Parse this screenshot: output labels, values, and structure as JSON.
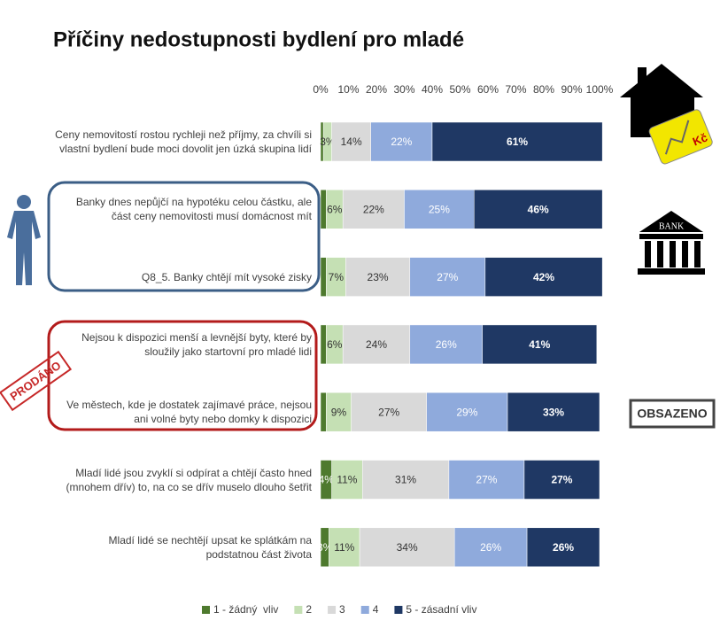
{
  "chart_data": {
    "type": "bar",
    "orientation": "horizontal",
    "stacked": true,
    "title": "Příčiny nedostupnosti bydlení pro mladé",
    "categories": [
      "Ceny nemovitostí rostou rychleji než příjmy, za chvíli si vlastní bydlení bude moci dovolit jen úzká skupina lidí",
      "Banky dnes nepůjčí na hypotéku celou částku, ale část ceny nemovitosti musí domácnost mít",
      "Q8_5. Banky chtějí mít vysoké zisky",
      "Nejsou k dispozici menší a levnější byty, které by sloužily jako startovní pro mladé lidi",
      "Ve městech, kde je dostatek zajímavé práce, nejsou ani volné byty nebo domky k dispozici",
      "Mladí lidé jsou zvyklí si odpírat a chtějí často hned (mnohem dřív) to, na co se dřív muselo dlouho šetřit",
      "Mladí lidé se nechtějí upsat ke splátkám na podstatnou část života"
    ],
    "series": [
      {
        "name": "1 - žádný  vliv",
        "color": "#4e7a2e",
        "values": [
          1,
          2,
          2,
          2,
          2,
          4,
          3
        ],
        "value_labels": [
          null,
          null,
          null,
          null,
          null,
          "4%",
          "3%"
        ]
      },
      {
        "name": "2",
        "color": "#c5e0b4",
        "values": [
          3,
          6,
          7,
          6,
          9,
          11,
          11
        ],
        "value_labels": [
          "3%",
          "6%",
          "7%",
          "6%",
          "9%",
          "11%",
          "11%"
        ]
      },
      {
        "name": "3",
        "color": "#d9d9d9",
        "values": [
          14,
          22,
          23,
          24,
          27,
          31,
          34
        ],
        "value_labels": [
          "14%",
          "22%",
          "23%",
          "24%",
          "27%",
          "31%",
          "34%"
        ]
      },
      {
        "name": "4",
        "color": "#8faadc",
        "values": [
          22,
          25,
          27,
          26,
          29,
          27,
          26
        ],
        "value_labels": [
          "22%",
          "25%",
          "27%",
          "26%",
          "29%",
          "27%",
          "26%"
        ]
      },
      {
        "name": "5 - zásadní vliv",
        "color": "#1f3864",
        "values": [
          61,
          46,
          42,
          41,
          33,
          27,
          26
        ],
        "value_labels": [
          "61%",
          "46%",
          "42%",
          "41%",
          "33%",
          "27%",
          "26%"
        ]
      }
    ],
    "xlim": [
      0,
      100
    ],
    "xticks": [
      {
        "value": 0,
        "label": "0%"
      },
      {
        "value": 10,
        "label": "10%"
      },
      {
        "value": 20,
        "label": "20%"
      },
      {
        "value": 30,
        "label": "30%"
      },
      {
        "value": 40,
        "label": "40%"
      },
      {
        "value": 50,
        "label": "50%"
      },
      {
        "value": 60,
        "label": "60%"
      },
      {
        "value": 70,
        "label": "70%"
      },
      {
        "value": 80,
        "label": "80%"
      },
      {
        "value": 90,
        "label": "90%"
      },
      {
        "value": 100,
        "label": "100%"
      }
    ],
    "grid": false,
    "legend": "bottom"
  },
  "decorations": {
    "price_tag": "Kč",
    "bank_sign": "BANK",
    "stamp_sold": "PRODÁNO",
    "stamp_occupied": "OBSAZENO"
  }
}
